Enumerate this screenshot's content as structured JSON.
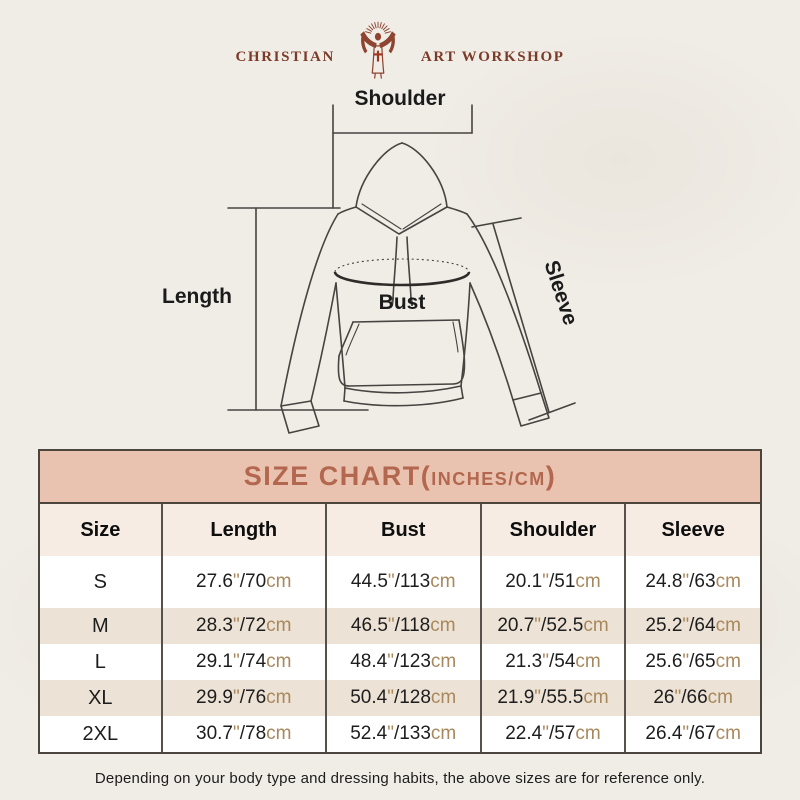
{
  "page": {
    "bg_color": "#f0ede7"
  },
  "logo": {
    "text_left": "CHRISTIAN",
    "text_right": "ART WORKSHOP",
    "color": "#7c3a28"
  },
  "diagram": {
    "shoulder_label": "Shoulder",
    "length_label": "Length",
    "bust_label": "Bust",
    "sleeve_label": "Sleeve"
  },
  "size_chart": {
    "title": {
      "main": "SIZE CHART(",
      "unit": "INCHES/CM",
      "close": ")"
    },
    "colors": {
      "title_bar_bg": "#e9c2b0",
      "title_text": "#b2674e",
      "header_row_bg": "#f6ece3",
      "alt_row_bg": "#ece2d5",
      "accent_text": "#a8885c"
    },
    "unit_inch_mark": "\"",
    "unit_separator": "/",
    "unit_cm": "cm",
    "columns": [
      "Size",
      "Length",
      "Bust",
      "Shoulder",
      "Sleeve"
    ],
    "rows": [
      {
        "size": "S",
        "length": {
          "in": "27.6",
          "cm": "70"
        },
        "bust": {
          "in": "44.5",
          "cm": "113"
        },
        "shoulder": {
          "in": "20.1",
          "cm": "51"
        },
        "sleeve": {
          "in": "24.8",
          "cm": "63"
        }
      },
      {
        "size": "M",
        "length": {
          "in": "28.3",
          "cm": "72"
        },
        "bust": {
          "in": "46.5",
          "cm": "118"
        },
        "shoulder": {
          "in": "20.7",
          "cm": "52.5"
        },
        "sleeve": {
          "in": "25.2",
          "cm": "64"
        }
      },
      {
        "size": "L",
        "length": {
          "in": "29.1",
          "cm": "74"
        },
        "bust": {
          "in": "48.4",
          "cm": "123"
        },
        "shoulder": {
          "in": "21.3",
          "cm": "54"
        },
        "sleeve": {
          "in": "25.6",
          "cm": "65"
        }
      },
      {
        "size": "XL",
        "length": {
          "in": "29.9",
          "cm": "76"
        },
        "bust": {
          "in": "50.4",
          "cm": "128"
        },
        "shoulder": {
          "in": "21.9",
          "cm": "55.5"
        },
        "sleeve": {
          "in": "26",
          "cm": "66"
        }
      },
      {
        "size": "2XL",
        "length": {
          "in": "30.7",
          "cm": "78"
        },
        "bust": {
          "in": "52.4",
          "cm": "133"
        },
        "shoulder": {
          "in": "22.4",
          "cm": "57"
        },
        "sleeve": {
          "in": "26.4",
          "cm": "67"
        }
      }
    ]
  },
  "disclaimer": "Depending on your body type and dressing habits, the above sizes are for reference only.",
  "chart_data": {
    "type": "table",
    "title": "SIZE CHART(INCHES/CM)",
    "columns": [
      "Size",
      "Length",
      "Bust",
      "Shoulder",
      "Sleeve"
    ],
    "rows": [
      [
        "S",
        "27.6\"/70cm",
        "44.5\"/113cm",
        "20.1\"/51cm",
        "24.8\"/63cm"
      ],
      [
        "M",
        "28.3\"/72cm",
        "46.5\"/118cm",
        "20.7\"/52.5cm",
        "25.2\"/64cm"
      ],
      [
        "L",
        "29.1\"/74cm",
        "48.4\"/123cm",
        "21.3\"/54cm",
        "25.6\"/65cm"
      ],
      [
        "XL",
        "29.9\"/76cm",
        "50.4\"/128cm",
        "21.9\"/55.5cm",
        "26\"/66cm"
      ],
      [
        "2XL",
        "30.7\"/78cm",
        "52.4\"/133cm",
        "22.4\"/57cm",
        "26.4\"/67cm"
      ]
    ]
  }
}
